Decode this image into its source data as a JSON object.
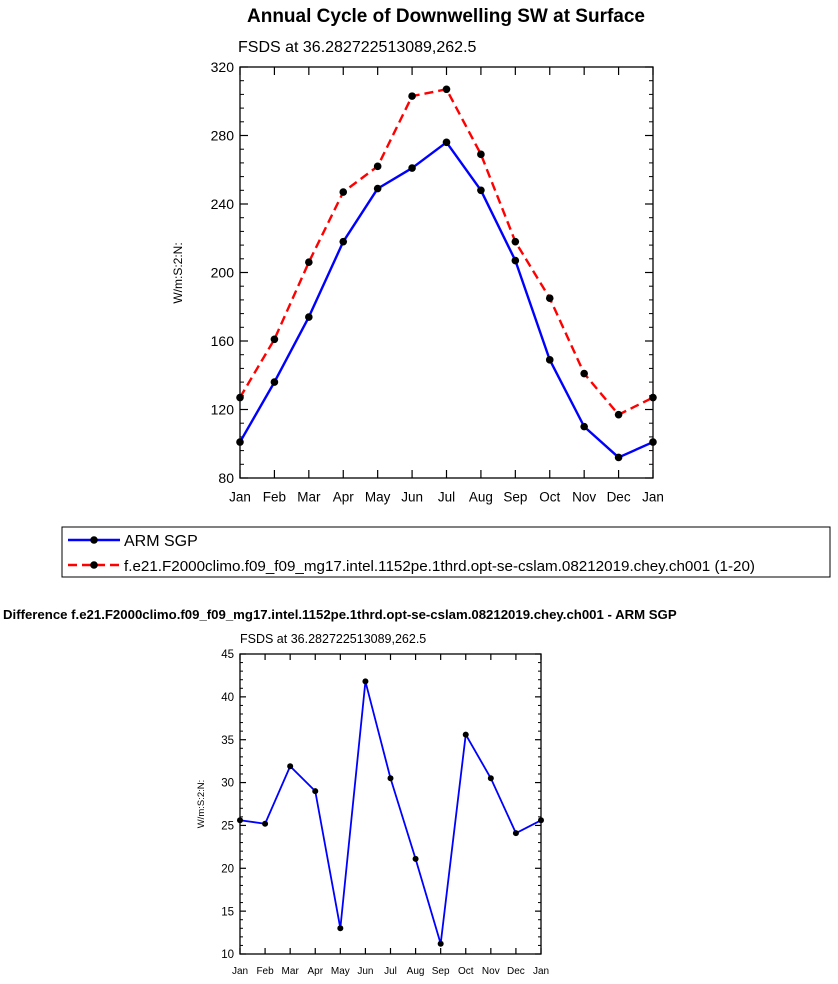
{
  "chart_data": [
    {
      "type": "line",
      "title": "Annual Cycle of Downwelling SW at Surface",
      "subtitle": "FSDS at 36.282722513089,262.5",
      "ylabel": "W/m:S:2:N:",
      "xlabel": "",
      "categories": [
        "Jan",
        "Feb",
        "Mar",
        "Apr",
        "May",
        "Jun",
        "Jul",
        "Aug",
        "Sep",
        "Oct",
        "Nov",
        "Dec",
        "Jan"
      ],
      "ylim": [
        80,
        320
      ],
      "yticks": [
        80,
        120,
        160,
        200,
        240,
        280,
        320
      ],
      "legend_position": "bottom",
      "series": [
        {
          "name": "ARM SGP",
          "color": "#0000ff",
          "style": "solid",
          "values": [
            101,
            136,
            174,
            218,
            249,
            261,
            276,
            248,
            207,
            149,
            110,
            92,
            101
          ]
        },
        {
          "name": "f.e21.F2000climo.f09_f09_mg17.intel.1152pe.1thrd.opt-se-cslam.08212019.chey.ch001 (1-20)",
          "color": "#ff0000",
          "style": "dashed",
          "values": [
            127,
            161,
            206,
            247,
            262,
            303,
            307,
            269,
            218,
            185,
            141,
            117,
            127
          ]
        }
      ]
    },
    {
      "type": "line",
      "title": "Difference f.e21.F2000climo.f09_f09_mg17.intel.1152pe.1thrd.opt-se-cslam.08212019.chey.ch001 - ARM SGP",
      "subtitle": "FSDS at 36.282722513089,262.5",
      "ylabel": "W/m:S:2:N:",
      "xlabel": "",
      "categories": [
        "Jan",
        "Feb",
        "Mar",
        "Apr",
        "May",
        "Jun",
        "Jul",
        "Aug",
        "Sep",
        "Oct",
        "Nov",
        "Dec",
        "Jan"
      ],
      "ylim": [
        10,
        45
      ],
      "yticks": [
        10,
        15,
        20,
        25,
        30,
        35,
        40,
        45
      ],
      "series": [
        {
          "color": "#0000ff",
          "style": "solid",
          "values": [
            25.6,
            25.2,
            31.9,
            29.0,
            13.0,
            41.8,
            30.5,
            21.1,
            11.2,
            35.6,
            30.5,
            24.1,
            25.6
          ]
        }
      ]
    }
  ]
}
